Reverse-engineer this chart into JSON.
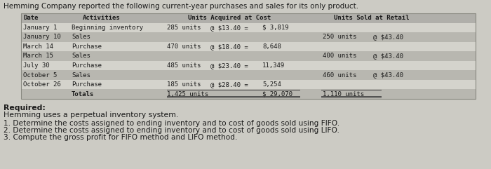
{
  "title": "Hemming Company reported the following current-year purchases and sales for its only product.",
  "bg_color": "#cccbc4",
  "table_bg_light": "#d4d3cc",
  "table_bg_dark": "#b8b7b0",
  "header_bg": "#b0afaa",
  "dates": [
    "January 1",
    "January 10",
    "March 14",
    "March 15",
    "July 30",
    "October 5",
    "October 26",
    ""
  ],
  "activities": [
    "Beginning inventory",
    "Sales",
    "Purchase",
    "Sales",
    "Purchase",
    "Sales",
    "Purchase",
    "Totals"
  ],
  "acquired_units": [
    "285 units",
    "",
    "470 units",
    "",
    "485 units",
    "",
    "185 units",
    "1,425 units"
  ],
  "acquired_price": [
    "@ $13.40 =",
    "",
    "@ $18.40 =",
    "",
    "@ $23.40 =",
    "",
    "@ $28.40 =",
    ""
  ],
  "acquired_cost": [
    "$ 3,819",
    "",
    "8,648",
    "",
    "11,349",
    "",
    "5,254",
    "$ 29,070"
  ],
  "sold_units": [
    "",
    "250 units",
    "",
    "400 units",
    "",
    "460 units",
    "",
    "1,110 units"
  ],
  "sold_price": [
    "",
    "@ $43.40",
    "",
    "@ $43.40",
    "",
    "@ $43.40",
    "",
    ""
  ],
  "required_title": "Required:",
  "required_line1": "Hemming uses a perpetual inventory system.",
  "required_line2": "1. Determine the costs assigned to ending inventory and to cost of goods sold using FIFO.",
  "required_line3": "2. Determine the costs assigned to ending inventory and to cost of goods sold using LIFO.",
  "required_line4": "3. Compute the gross profit for FIFO method and LIFO method.",
  "font_color": "#1a1a1a",
  "font_size": 6.5,
  "title_font_size": 7.5,
  "req_font_size": 7.8
}
